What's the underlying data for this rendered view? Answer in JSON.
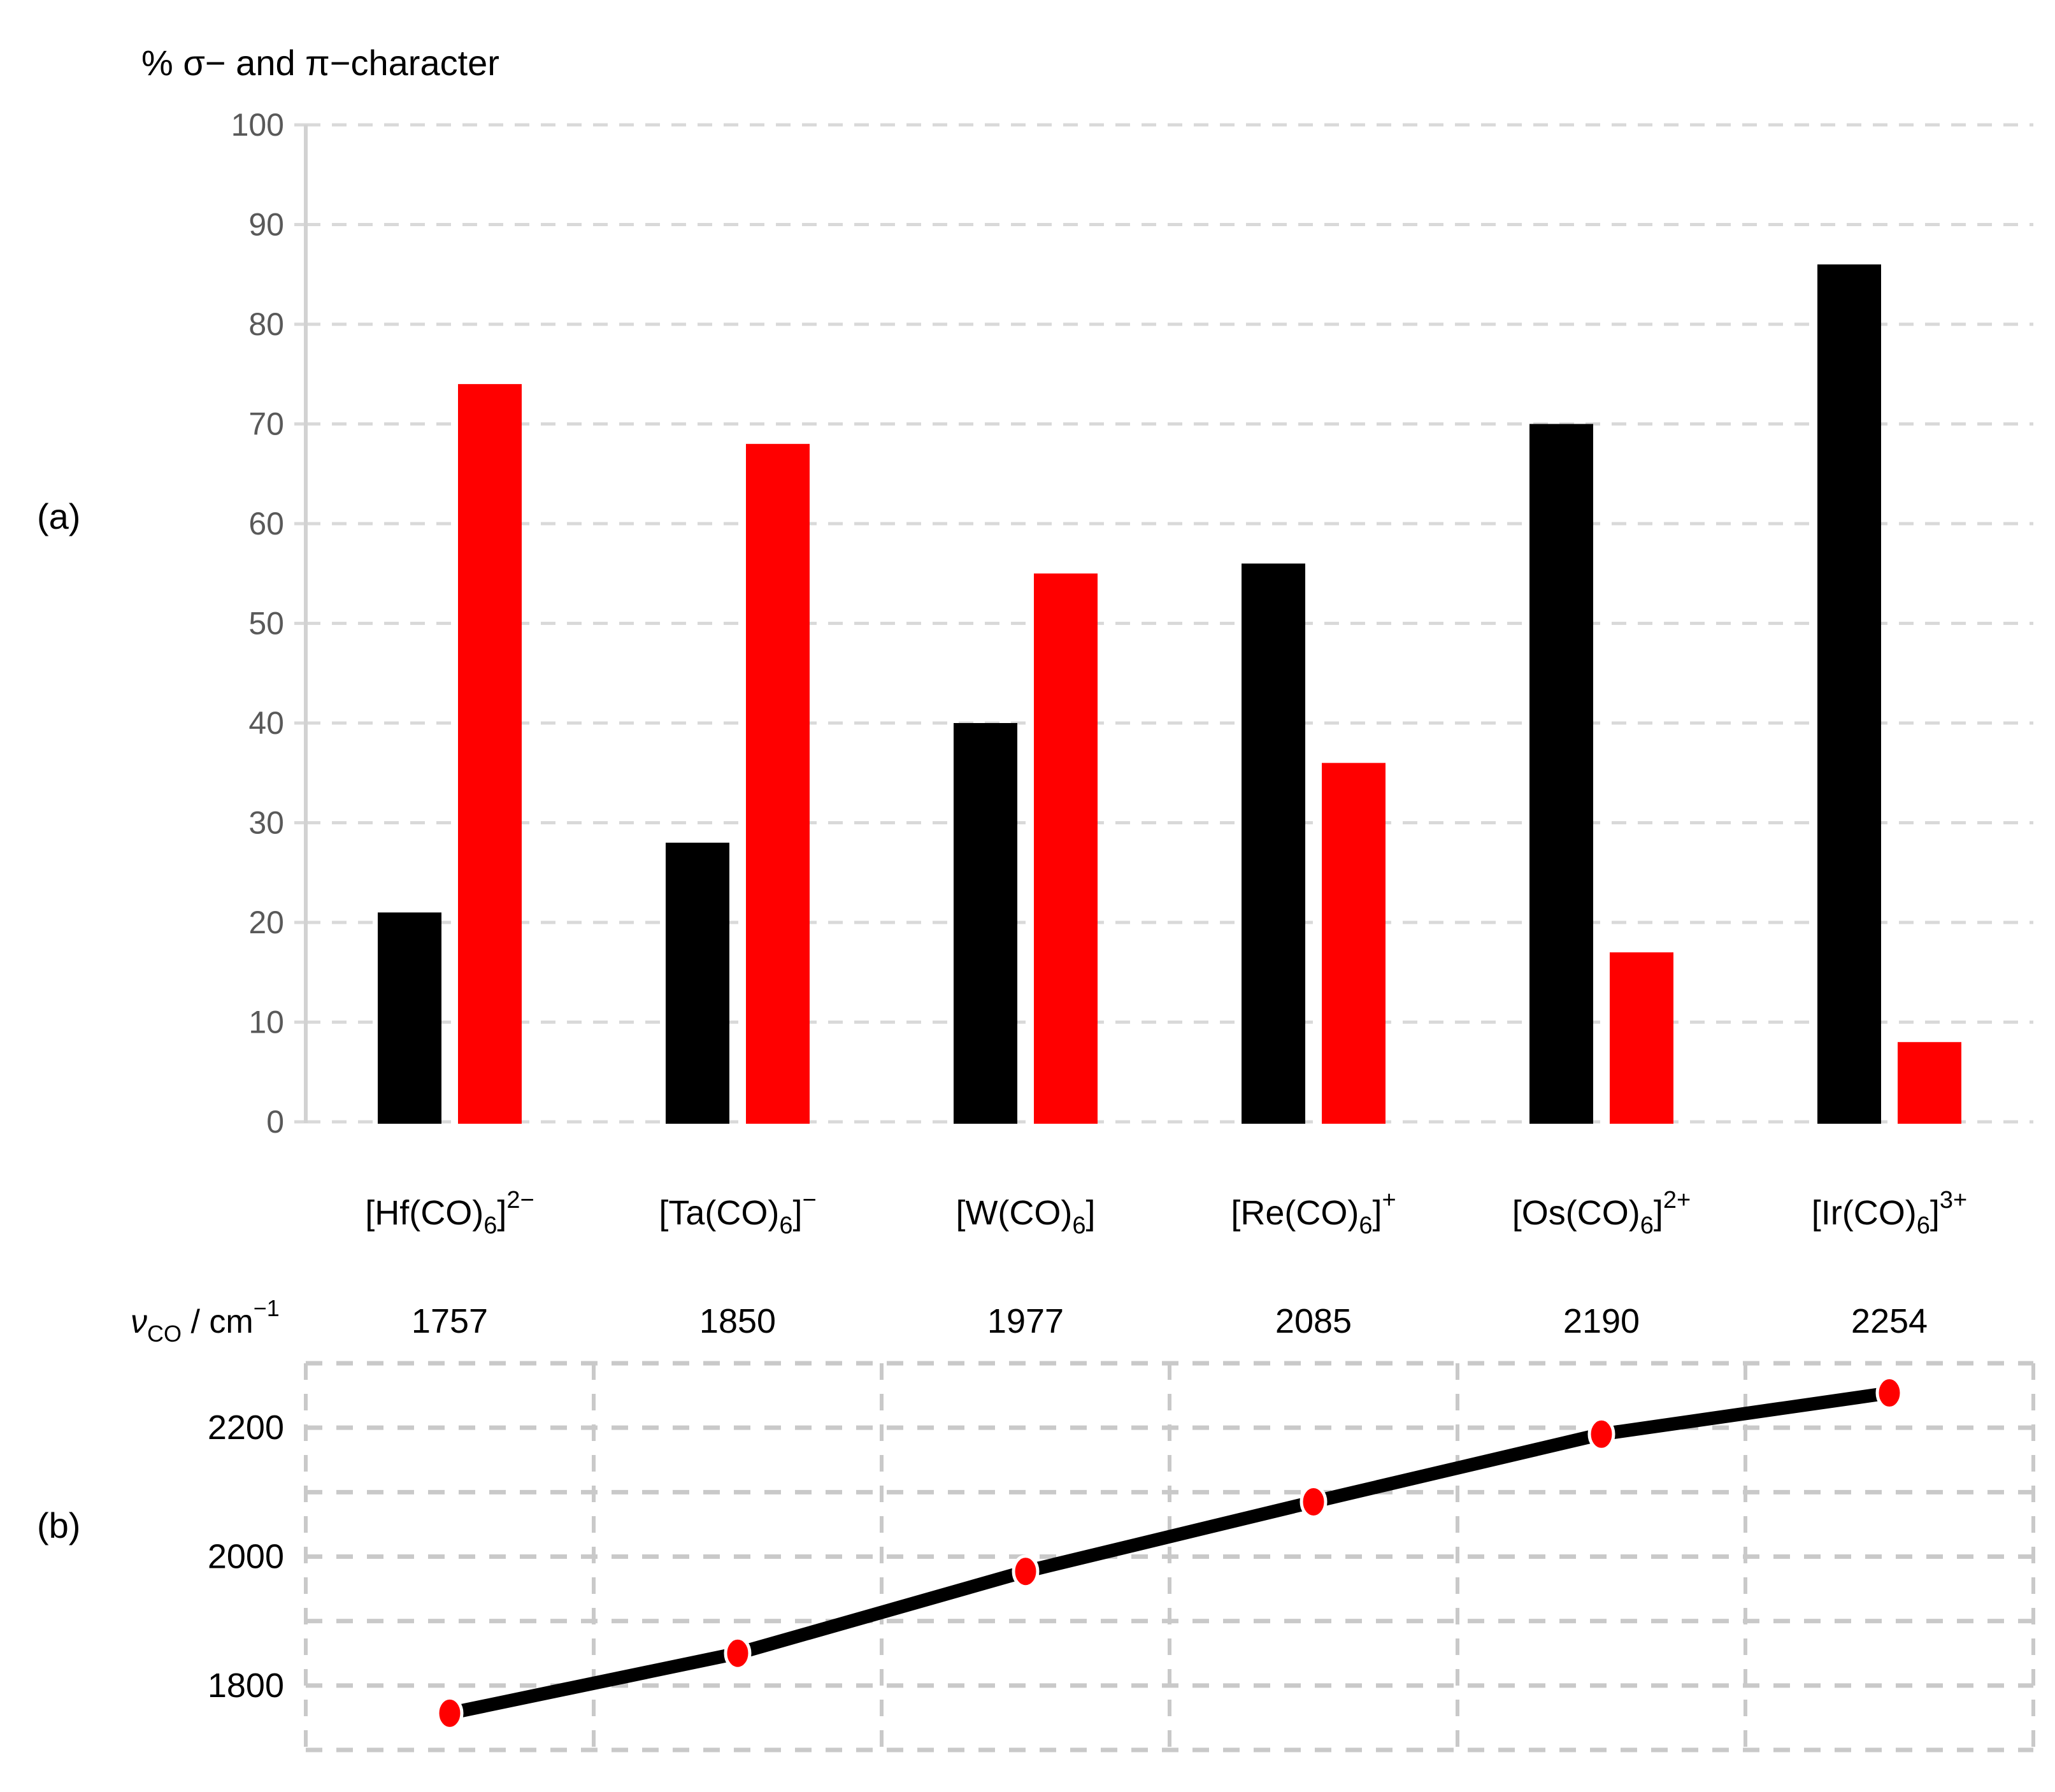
{
  "figure": {
    "title": "% σ− and π−character",
    "panel_a_label": "(a)",
    "panel_b_label": "(b)"
  },
  "colors": {
    "black": "#000000",
    "red": "#FF0000",
    "grid_a": "#D9D9D9",
    "grid_b": "#C9C9C9",
    "axis_line_a": "#D2D2D2",
    "tick_text_a": "#595959",
    "tick_text_b": "#000000",
    "background": "#FFFFFF"
  },
  "chart_data": [
    {
      "type": "bar",
      "panel": "a",
      "title": "% σ− and π−character",
      "xlabel": "",
      "ylabel": "% σ- and π-character",
      "ylim": [
        0,
        100
      ],
      "ytick_step": 10,
      "grid": "dashed horizontal gridlines every 10",
      "legend": "none (black = σ-character, red = π-character)",
      "categories": [
        "[Hf(CO)6]2−",
        "[Ta(CO)6]−",
        "[W(CO)6]",
        "[Re(CO)6]+",
        "[Os(CO)6]2+",
        "[Ir(CO)6]3+"
      ],
      "categories_rich": [
        [
          {
            "t": "[Hf(CO)"
          },
          {
            "t": "6",
            "script": "sub"
          },
          {
            "t": "]"
          },
          {
            "t": "2−",
            "script": "sup"
          }
        ],
        [
          {
            "t": "[Ta(CO)"
          },
          {
            "t": "6",
            "script": "sub"
          },
          {
            "t": "]"
          },
          {
            "t": "−",
            "script": "sup"
          }
        ],
        [
          {
            "t": "[W(CO)"
          },
          {
            "t": "6",
            "script": "sub"
          },
          {
            "t": "]"
          }
        ],
        [
          {
            "t": "[Re(CO)"
          },
          {
            "t": "6",
            "script": "sub"
          },
          {
            "t": "]"
          },
          {
            "t": "+",
            "script": "sup"
          }
        ],
        [
          {
            "t": "[Os(CO)"
          },
          {
            "t": "6",
            "script": "sub"
          },
          {
            "t": "]"
          },
          {
            "t": "2+",
            "script": "sup"
          }
        ],
        [
          {
            "t": "[Ir(CO)"
          },
          {
            "t": "6",
            "script": "sub"
          },
          {
            "t": "]"
          },
          {
            "t": "3+",
            "script": "sup"
          }
        ]
      ],
      "series": [
        {
          "name": "σ-character",
          "color": "#000000",
          "values": [
            21,
            28,
            40,
            56,
            70,
            86
          ]
        },
        {
          "name": "π-character",
          "color": "#FF0000",
          "values": [
            74,
            68,
            55,
            36,
            17,
            8
          ]
        }
      ]
    },
    {
      "type": "line",
      "panel": "b",
      "axis_row_label": "νCO / cm−1",
      "axis_row_label_rich": [
        {
          "t": "ν",
          "italic": true
        },
        {
          "t": "CO",
          "script": "sub"
        },
        {
          "t": " / cm"
        },
        {
          "t": "−1",
          "script": "sup"
        }
      ],
      "categories": [
        "[Hf(CO)6]2−",
        "[Ta(CO)6]−",
        "[W(CO)6]",
        "[Re(CO)6]+",
        "[Os(CO)6]2+",
        "[Ir(CO)6]3+"
      ],
      "values": [
        1757,
        1850,
        1977,
        2085,
        2190,
        2254
      ],
      "ylim": [
        1700,
        2300
      ],
      "ygrid_step": 100,
      "ytick_labels": [
        1800,
        2000,
        2200
      ],
      "grid": "dashed box with dashed horizontal gridlines every 100 and dashed vertical category separators",
      "line_color": "#000000",
      "marker": "red ellipse",
      "marker_color": "#FF0000"
    }
  ]
}
